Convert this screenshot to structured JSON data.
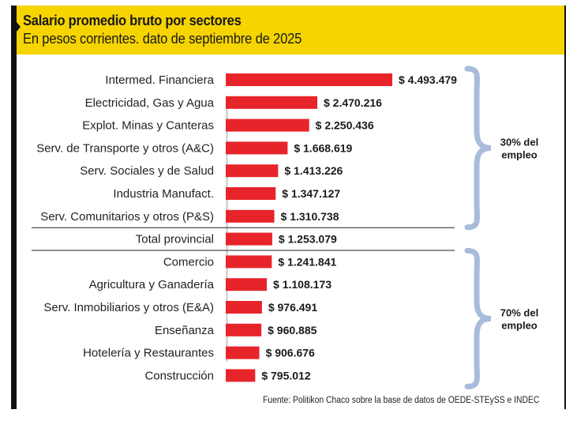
{
  "header": {
    "title": "Salario promedio bruto por sectores",
    "subtitle": "En pesos corrientes. dato de septiembre de 2025"
  },
  "colors": {
    "bar": "#e8242b",
    "header_bg": "#f5d400",
    "brace": "#a9bcdc",
    "axis": "#d9d9d9",
    "frame": "#111111"
  },
  "chart_data": {
    "type": "bar",
    "orientation": "horizontal",
    "title": "Salario promedio bruto por sectores",
    "subtitle": "En pesos corrientes. dato de septiembre de 2025",
    "xlabel": "",
    "ylabel": "",
    "currency_prefix": "$",
    "categories": [
      "Intermed. Financiera",
      "Electricidad, Gas y Agua",
      "Explot. Minas y Canteras",
      "Serv. de Transporte y otros (A&C)",
      "Serv. Sociales y de Salud",
      "Industria Manufact.",
      "Serv. Comunitarios y otros (P&S)",
      "Total provincial",
      "Comercio",
      "Agricultura y Ganadería",
      "Serv. Inmobiliarios y otros (E&A)",
      "Enseñanza",
      "Hotelería y Restaurantes",
      "Construcción"
    ],
    "values": [
      4493479,
      2470216,
      2250436,
      1668619,
      1413226,
      1347127,
      1310738,
      1253079,
      1241841,
      1108173,
      976491,
      960885,
      906676,
      795012
    ],
    "value_labels": [
      "$ 4.493.479",
      "$ 2.470.216",
      "$ 2.250.436",
      "$ 1.668.619",
      "$ 1.413.226",
      "$ 1.347.127",
      "$ 1.310.738",
      "$ 1.253.079",
      "$ 1.241.841",
      "$ 1.108.173",
      "$ 976.491",
      "$ 960.885",
      "$ 906.676",
      "$ 795.012"
    ],
    "xlim": [
      0,
      4493479
    ],
    "grid": false,
    "legend": "none",
    "groups": [
      {
        "label_line1": "30% del",
        "label_line2": "empleo",
        "from_index": 0,
        "to_index": 6
      },
      {
        "label_line1": "70% del",
        "label_line2": "empleo",
        "from_index": 8,
        "to_index": 13
      }
    ],
    "separators_around_index": 7
  },
  "source": "Fuente: Politikon Chaco sobre la base de datos de OEDE-STEySS e INDEC"
}
